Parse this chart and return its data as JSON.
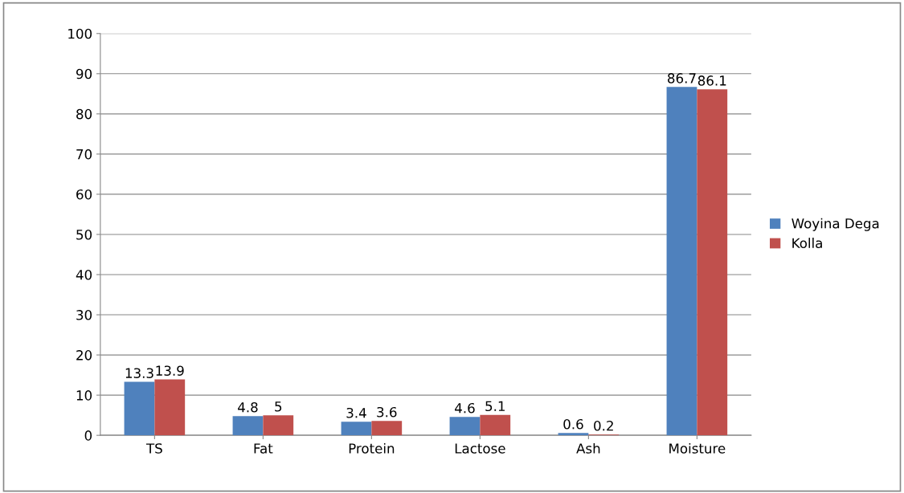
{
  "chart_data": {
    "type": "bar",
    "categories": [
      "TS",
      "Fat",
      "Protein",
      "Lactose",
      "Ash",
      "Moisture"
    ],
    "series": [
      {
        "name": "Woyina Dega",
        "color": "#4f81bd",
        "values": [
          13.3,
          4.8,
          3.4,
          4.6,
          0.6,
          86.7
        ]
      },
      {
        "name": "Kolla",
        "color": "#c0504d",
        "values": [
          13.9,
          5,
          3.6,
          5.1,
          0.2,
          86.1
        ]
      }
    ],
    "ylim": [
      0,
      100
    ],
    "yticks": [
      0,
      10,
      20,
      30,
      40,
      50,
      60,
      70,
      80,
      90,
      100
    ],
    "grid": "y",
    "legend": "right",
    "data_labels": true
  }
}
